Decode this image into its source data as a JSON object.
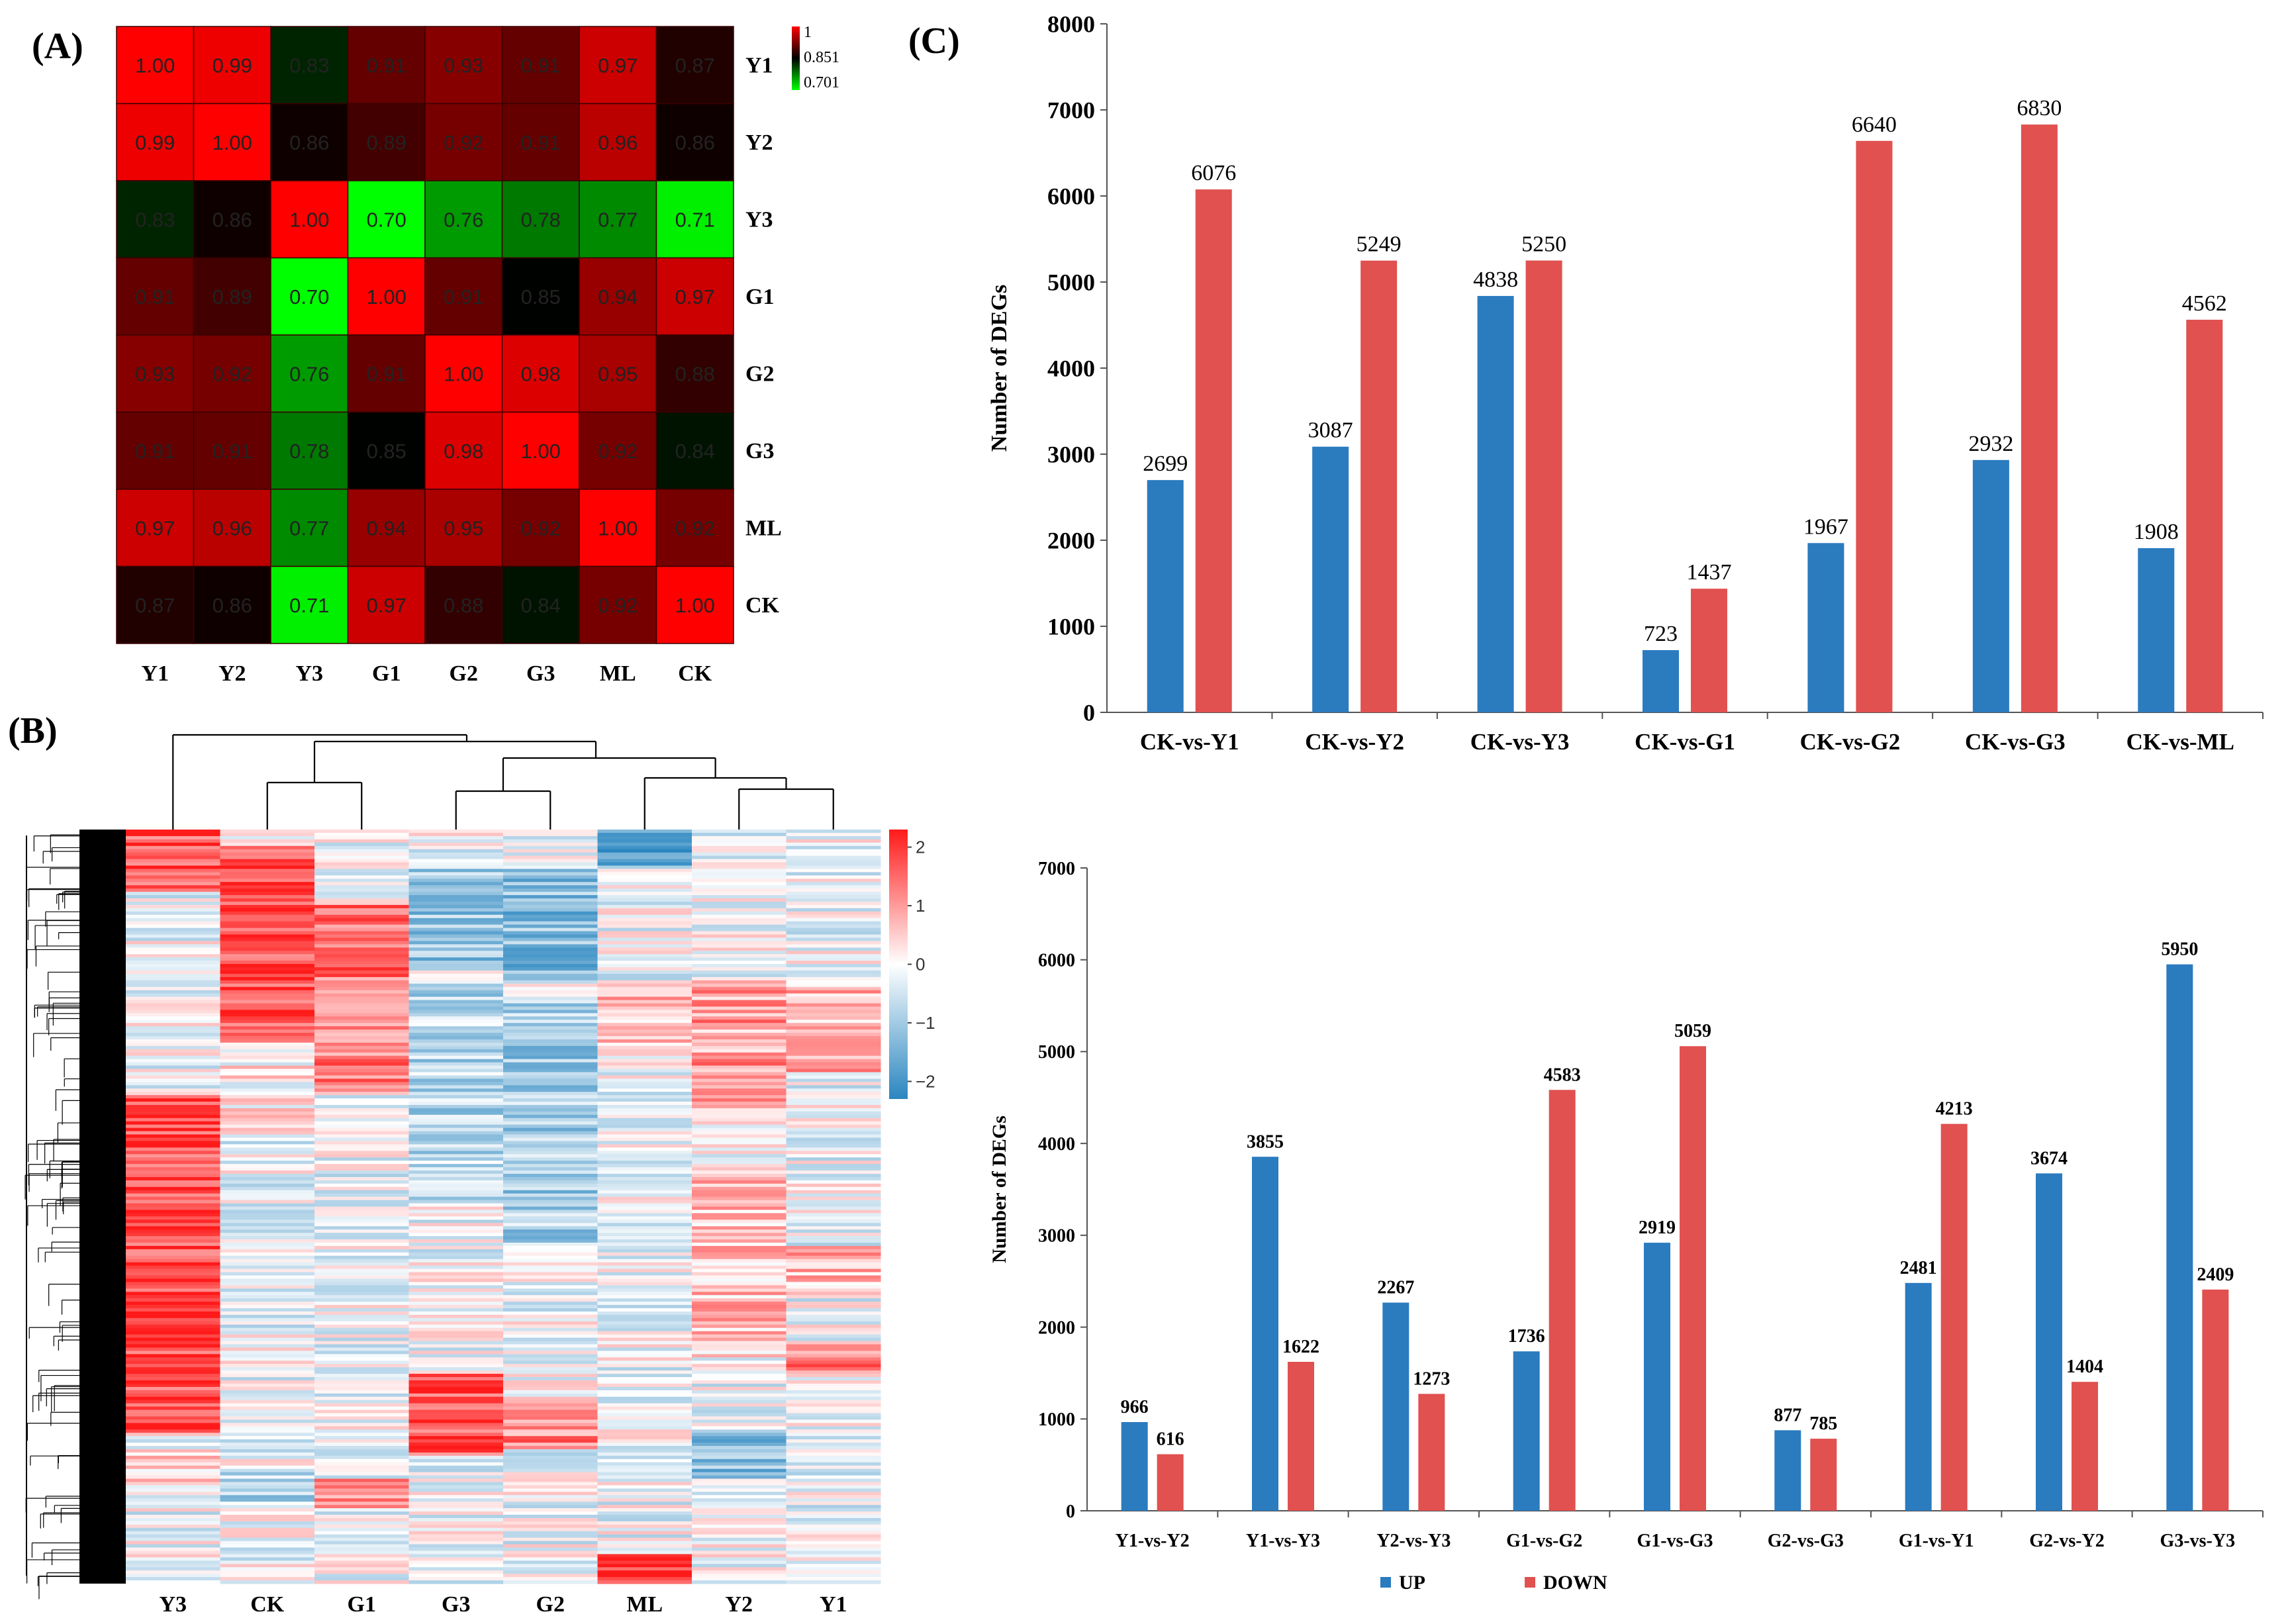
{
  "panel_labels": {
    "a": "(A)",
    "b": "(B)",
    "c": "(C)"
  },
  "colors": {
    "corr_high": "#ff0000",
    "corr_mid": "#000000",
    "corr_low": "#00ff00",
    "up": "#2b7bbf",
    "down": "#e0514f",
    "heat_high": "#ff1a1a",
    "heat_mid": "#ffffff",
    "heat_low": "#2a86c0"
  },
  "chart_data": [
    {
      "type": "heatmap",
      "id": "correlation",
      "row_labels": [
        "Y1",
        "Y2",
        "Y3",
        "G1",
        "G2",
        "G3",
        "ML",
        "CK"
      ],
      "col_labels": [
        "Y1",
        "Y2",
        "Y3",
        "G1",
        "G2",
        "G3",
        "ML",
        "CK"
      ],
      "values": [
        [
          "1.00",
          "0.99",
          "0.83",
          "0.91",
          "0.93",
          "0.91",
          "0.97",
          "0.87"
        ],
        [
          "0.99",
          "1.00",
          "0.86",
          "0.89",
          "0.92",
          "0.91",
          "0.96",
          "0.86"
        ],
        [
          "0.83",
          "0.86",
          "1.00",
          "0.70",
          "0.76",
          "0.78",
          "0.77",
          "0.71"
        ],
        [
          "0.91",
          "0.89",
          "0.70",
          "1.00",
          "0.91",
          "0.85",
          "0.94",
          "0.97"
        ],
        [
          "0.93",
          "0.92",
          "0.76",
          "0.91",
          "1.00",
          "0.98",
          "0.95",
          "0.88"
        ],
        [
          "0.91",
          "0.91",
          "0.78",
          "0.85",
          "0.98",
          "1.00",
          "0.92",
          "0.84"
        ],
        [
          "0.97",
          "0.96",
          "0.77",
          "0.94",
          "0.95",
          "0.92",
          "1.00",
          "0.92"
        ],
        [
          "0.87",
          "0.86",
          "0.71",
          "0.97",
          "0.88",
          "0.84",
          "0.92",
          "1.00"
        ]
      ],
      "scale": {
        "min": 0.701,
        "mid": 0.851,
        "max": 1
      },
      "legend_labels": [
        "1",
        "0.851",
        "0.701"
      ]
    },
    {
      "type": "heatmap",
      "id": "expression_cluster",
      "columns": [
        "Y3",
        "CK",
        "G1",
        "G3",
        "G2",
        "ML",
        "Y2",
        "Y1"
      ],
      "colorbar_ticks": [
        "2",
        "1",
        "0",
        "−1",
        "−2"
      ],
      "colorbar_values": [
        2,
        1,
        0,
        -1,
        -2
      ],
      "range": [
        -2.3,
        2.3
      ]
    },
    {
      "type": "bar",
      "id": "degs_ck",
      "categories": [
        "CK-vs-Y1",
        "CK-vs-Y2",
        "CK-vs-Y3",
        "CK-vs-G1",
        "CK-vs-G2",
        "CK-vs-G3",
        "CK-vs-ML"
      ],
      "series": [
        {
          "name": "UP",
          "values": [
            2699,
            3087,
            4838,
            723,
            1967,
            2932,
            1908
          ]
        },
        {
          "name": "DOWN",
          "values": [
            6076,
            5249,
            5250,
            1437,
            6640,
            6830,
            4562
          ]
        }
      ],
      "ylabel": "Number of DEGs",
      "ylim": [
        0,
        8000
      ],
      "yticks": [
        0,
        1000,
        2000,
        3000,
        4000,
        5000,
        6000,
        7000,
        8000
      ]
    },
    {
      "type": "bar",
      "id": "degs_pairwise",
      "categories": [
        "Y1-vs-Y2",
        "Y1-vs-Y3",
        "Y2-vs-Y3",
        "G1-vs-G2",
        "G1-vs-G3",
        "G2-vs-G3",
        "G1-vs-Y1",
        "G2-vs-Y2",
        "G3-vs-Y3"
      ],
      "series": [
        {
          "name": "UP",
          "values": [
            966,
            3855,
            2267,
            1736,
            2919,
            877,
            2481,
            3674,
            5950
          ]
        },
        {
          "name": "DOWN",
          "values": [
            616,
            1622,
            1273,
            4583,
            5059,
            785,
            4213,
            1404,
            2409
          ]
        }
      ],
      "ylabel": "Number of DEGs",
      "ylim": [
        0,
        7000
      ],
      "yticks": [
        0,
        1000,
        2000,
        3000,
        4000,
        5000,
        6000,
        7000
      ],
      "legend": [
        "UP",
        "DOWN"
      ]
    }
  ]
}
